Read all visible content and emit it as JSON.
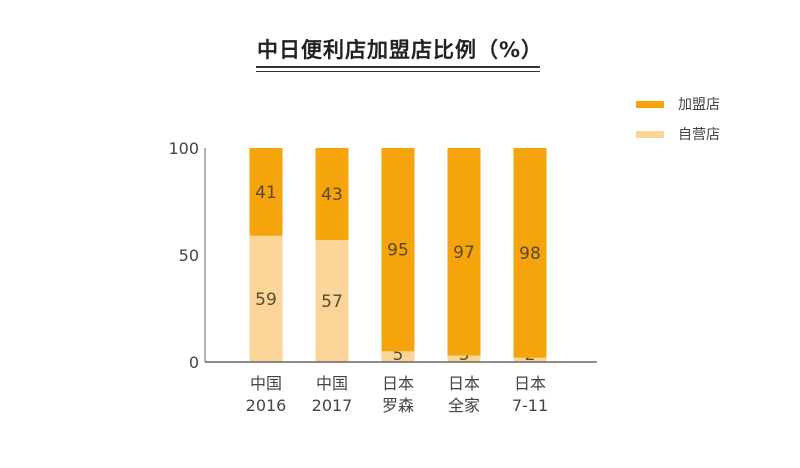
{
  "chart_data": {
    "type": "bar",
    "stacked": true,
    "title": "中日便利店加盟店比例（%）",
    "categories": [
      [
        "中国",
        "2016"
      ],
      [
        "中国",
        "2017"
      ],
      [
        "日本",
        "罗森"
      ],
      [
        "日本",
        "全家"
      ],
      [
        "日本",
        "7-11"
      ]
    ],
    "series": [
      {
        "name": "自营店",
        "color": "#FAD597",
        "values": [
          59,
          57,
          5,
          3,
          2
        ]
      },
      {
        "name": "加盟店",
        "color": "#F5A40C",
        "values": [
          41,
          43,
          95,
          97,
          98
        ]
      }
    ],
    "ylim": [
      0,
      100
    ],
    "yticks": [
      0,
      50,
      100
    ],
    "legend_position": "top-right",
    "legend_order": [
      1,
      0
    ]
  }
}
